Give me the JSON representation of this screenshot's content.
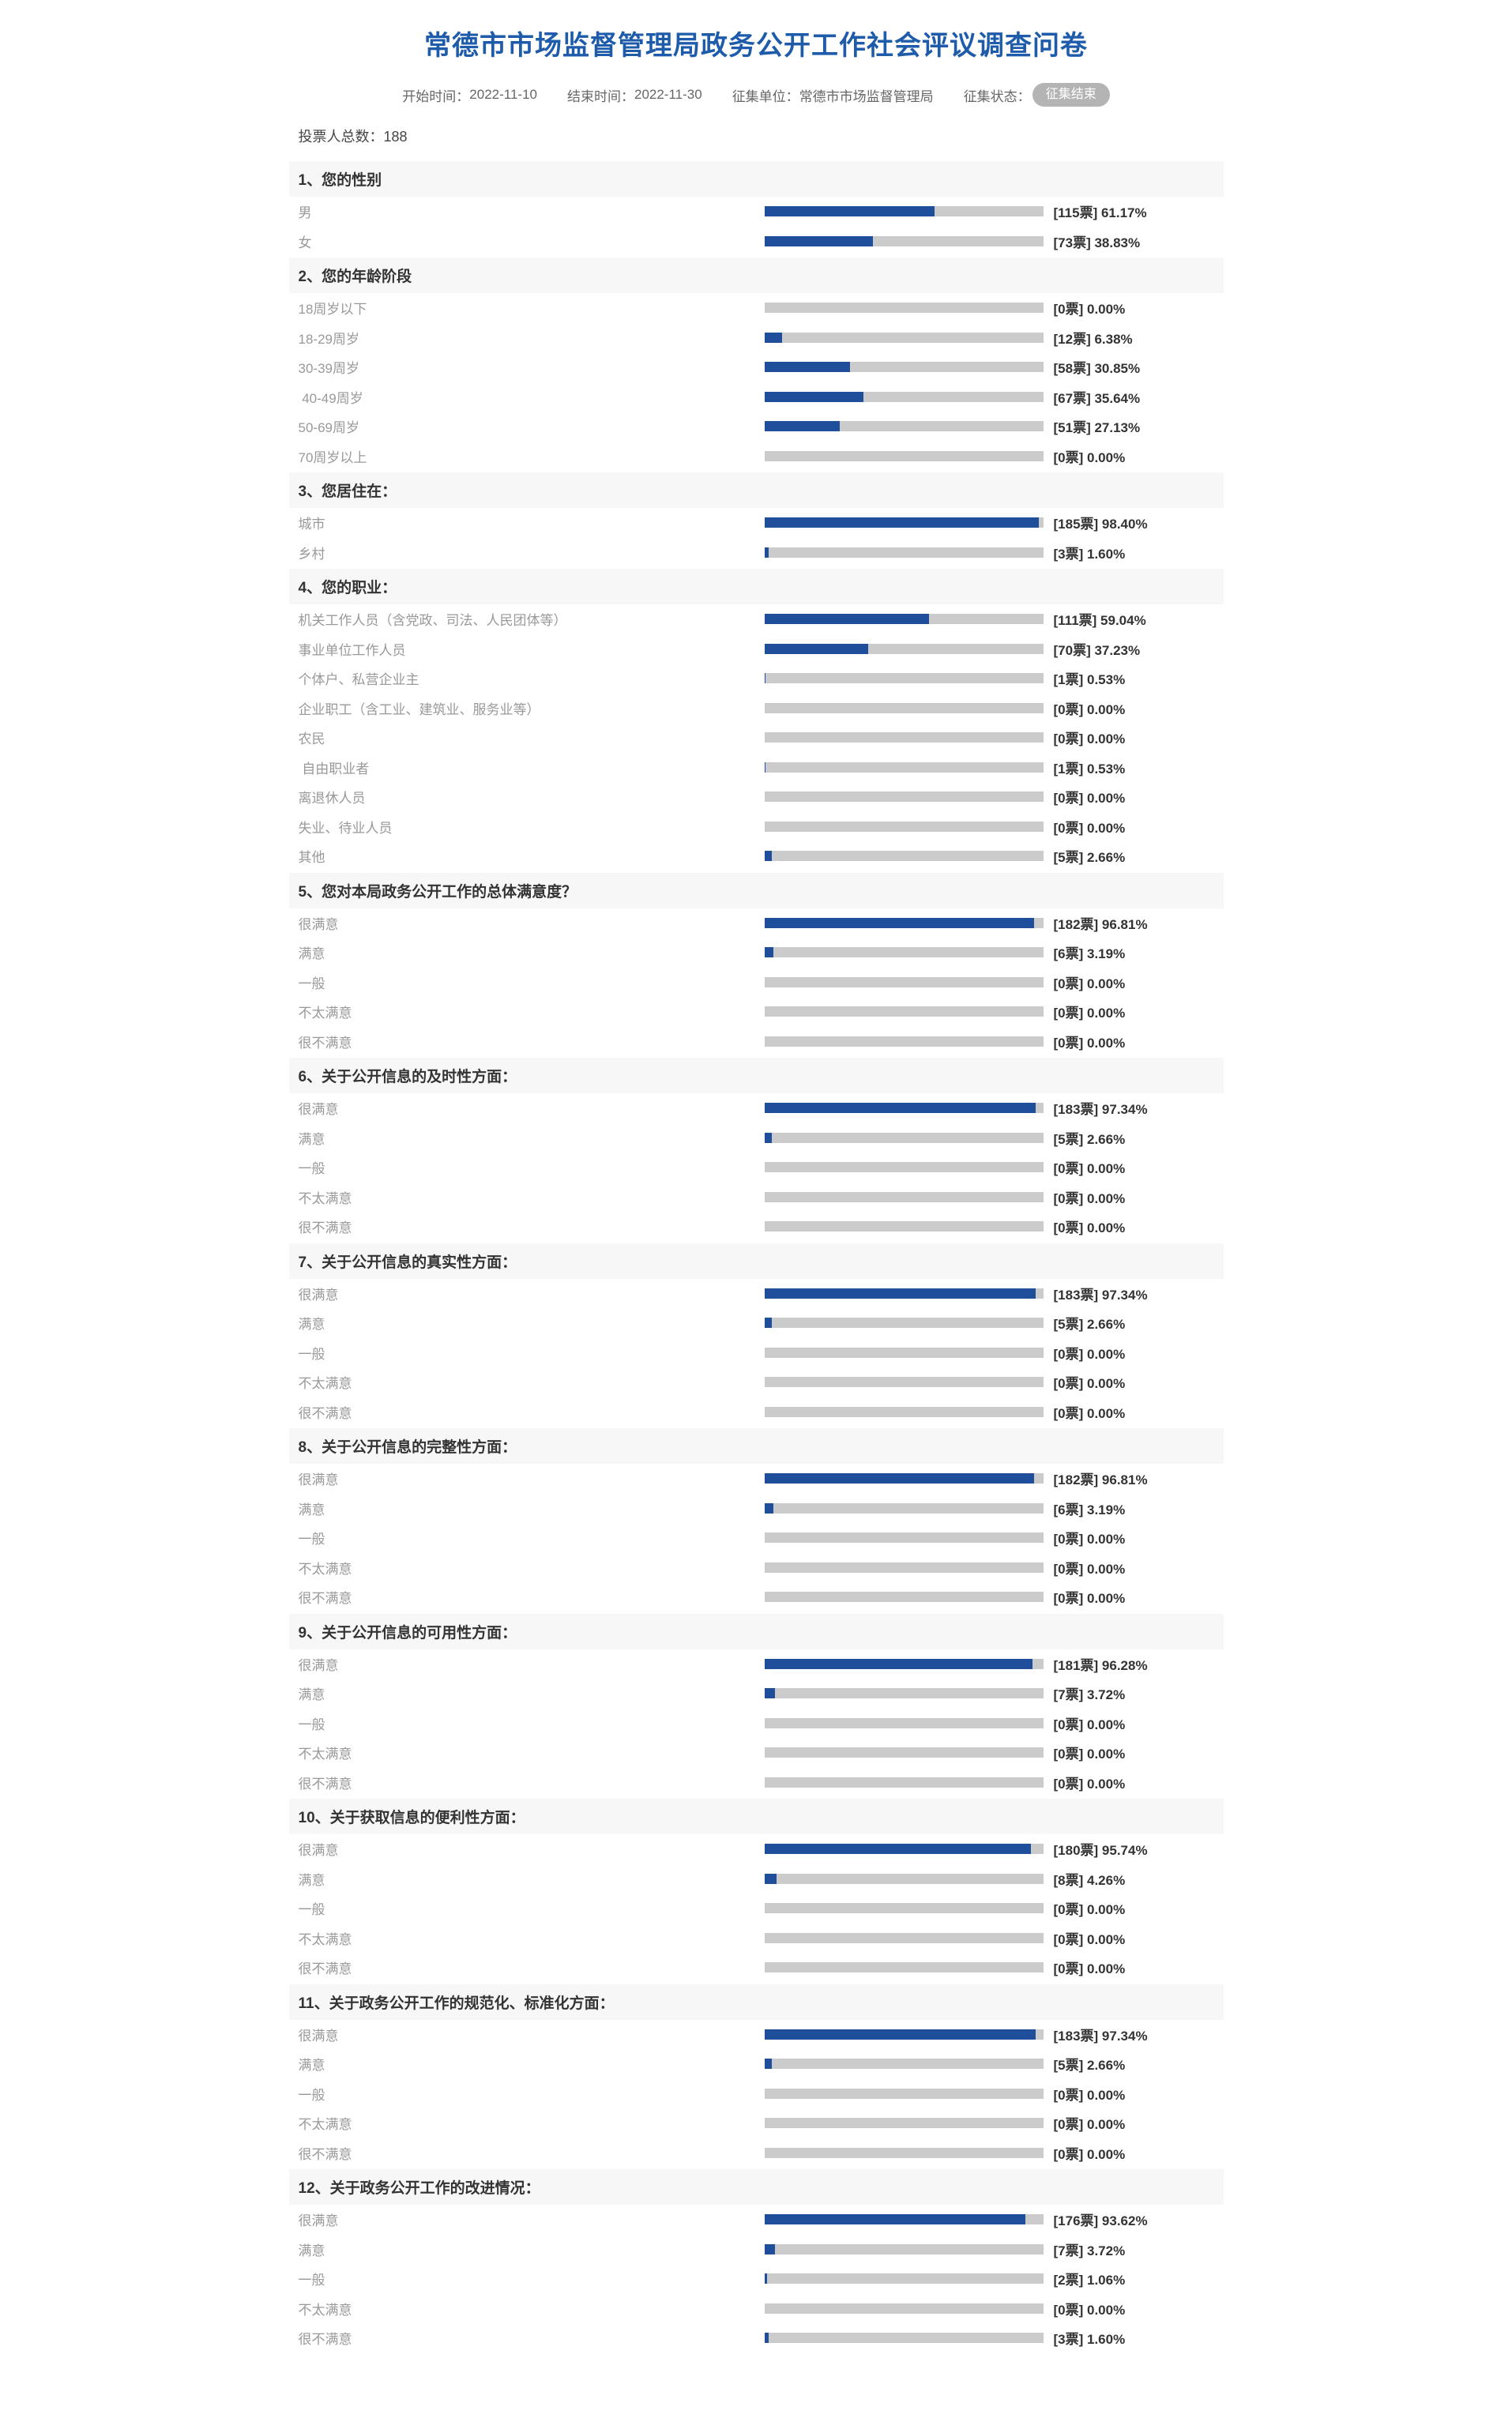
{
  "header": {
    "title": "常德市市场监督管理局政务公开工作社会评议调查问卷",
    "meta": [
      {
        "label": "开始时间：",
        "value": "2022-11-10"
      },
      {
        "label": "结束时间：",
        "value": "2022-11-30"
      },
      {
        "label": "征集单位：",
        "value": "常德市市场监督管理局"
      }
    ],
    "status_label": "征集状态：",
    "status_badge": "征集结束"
  },
  "summary": {
    "total_label": "投票人总数：",
    "total_value": "188"
  },
  "format": {
    "number_separator": "、",
    "bracket_open": "[",
    "votes_unit": "票",
    "bracket_close": "]",
    "percent_sign": "%"
  },
  "colors": {
    "title_blue": "#1e5cab",
    "bar_fill": "#1f4e9b",
    "bar_track": "#cbcbcb",
    "band_bg": "#f7f7f7",
    "badge_bg": "#b4b4b4",
    "label_gray": "#999999",
    "votes_dark": "#333333"
  },
  "chart_data": [
    {
      "type": "bar",
      "number": 1,
      "title": "您的性别",
      "categories": [
        "男",
        "女"
      ],
      "votes": [
        115,
        73
      ],
      "percents": [
        61.17,
        38.83
      ]
    },
    {
      "type": "bar",
      "number": 2,
      "title": "您的年龄阶段",
      "categories": [
        "18周岁以下",
        "18-29周岁",
        "30-39周岁",
        " 40-49周岁",
        "50-69周岁",
        "70周岁以上"
      ],
      "votes": [
        0,
        12,
        58,
        67,
        51,
        0
      ],
      "percents": [
        0.0,
        6.38,
        30.85,
        35.64,
        27.13,
        0.0
      ]
    },
    {
      "type": "bar",
      "number": 3,
      "title": "您居住在：",
      "categories": [
        "城市",
        "乡村"
      ],
      "votes": [
        185,
        3
      ],
      "percents": [
        98.4,
        1.6
      ]
    },
    {
      "type": "bar",
      "number": 4,
      "title": "您的职业：",
      "categories": [
        "机关工作人员（含党政、司法、人民团体等）",
        "事业单位工作人员",
        "个体户、私营企业主",
        "企业职工（含工业、建筑业、服务业等）",
        "农民",
        " 自由职业者",
        "离退休人员",
        "失业、待业人员",
        "其他"
      ],
      "votes": [
        111,
        70,
        1,
        0,
        0,
        1,
        0,
        0,
        5
      ],
      "percents": [
        59.04,
        37.23,
        0.53,
        0.0,
        0.0,
        0.53,
        0.0,
        0.0,
        2.66
      ]
    },
    {
      "type": "bar",
      "number": 5,
      "title": "您对本局政务公开工作的总体满意度？",
      "categories": [
        "很满意",
        "满意",
        "一般",
        "不太满意",
        "很不满意"
      ],
      "votes": [
        182,
        6,
        0,
        0,
        0
      ],
      "percents": [
        96.81,
        3.19,
        0.0,
        0.0,
        0.0
      ]
    },
    {
      "type": "bar",
      "number": 6,
      "title": "关于公开信息的及时性方面：",
      "categories": [
        "很满意",
        "满意",
        "一般",
        "不太满意",
        "很不满意"
      ],
      "votes": [
        183,
        5,
        0,
        0,
        0
      ],
      "percents": [
        97.34,
        2.66,
        0.0,
        0.0,
        0.0
      ]
    },
    {
      "type": "bar",
      "number": 7,
      "title": "关于公开信息的真实性方面：",
      "categories": [
        "很满意",
        "满意",
        "一般",
        "不太满意",
        "很不满意"
      ],
      "votes": [
        183,
        5,
        0,
        0,
        0
      ],
      "percents": [
        97.34,
        2.66,
        0.0,
        0.0,
        0.0
      ]
    },
    {
      "type": "bar",
      "number": 8,
      "title": "关于公开信息的完整性方面：",
      "categories": [
        "很满意",
        "满意",
        "一般",
        "不太满意",
        "很不满意"
      ],
      "votes": [
        182,
        6,
        0,
        0,
        0
      ],
      "percents": [
        96.81,
        3.19,
        0.0,
        0.0,
        0.0
      ]
    },
    {
      "type": "bar",
      "number": 9,
      "title": "关于公开信息的可用性方面：",
      "categories": [
        "很满意",
        "满意",
        "一般",
        "不太满意",
        "很不满意"
      ],
      "votes": [
        181,
        7,
        0,
        0,
        0
      ],
      "percents": [
        96.28,
        3.72,
        0.0,
        0.0,
        0.0
      ]
    },
    {
      "type": "bar",
      "number": 10,
      "title": "关于获取信息的便利性方面：",
      "categories": [
        "很满意",
        "满意",
        "一般",
        "不太满意",
        "很不满意"
      ],
      "votes": [
        180,
        8,
        0,
        0,
        0
      ],
      "percents": [
        95.74,
        4.26,
        0.0,
        0.0,
        0.0
      ]
    },
    {
      "type": "bar",
      "number": 11,
      "title": "关于政务公开工作的规范化、标准化方面：",
      "categories": [
        "很满意",
        "满意",
        "一般",
        "不太满意",
        "很不满意"
      ],
      "votes": [
        183,
        5,
        0,
        0,
        0
      ],
      "percents": [
        97.34,
        2.66,
        0.0,
        0.0,
        0.0
      ]
    },
    {
      "type": "bar",
      "number": 12,
      "title": "关于政务公开工作的改进情况：",
      "categories": [
        "很满意",
        "满意",
        "一般",
        "不太满意",
        "很不满意"
      ],
      "votes": [
        176,
        7,
        2,
        0,
        3
      ],
      "percents": [
        93.62,
        3.72,
        1.06,
        0.0,
        1.6
      ]
    }
  ]
}
